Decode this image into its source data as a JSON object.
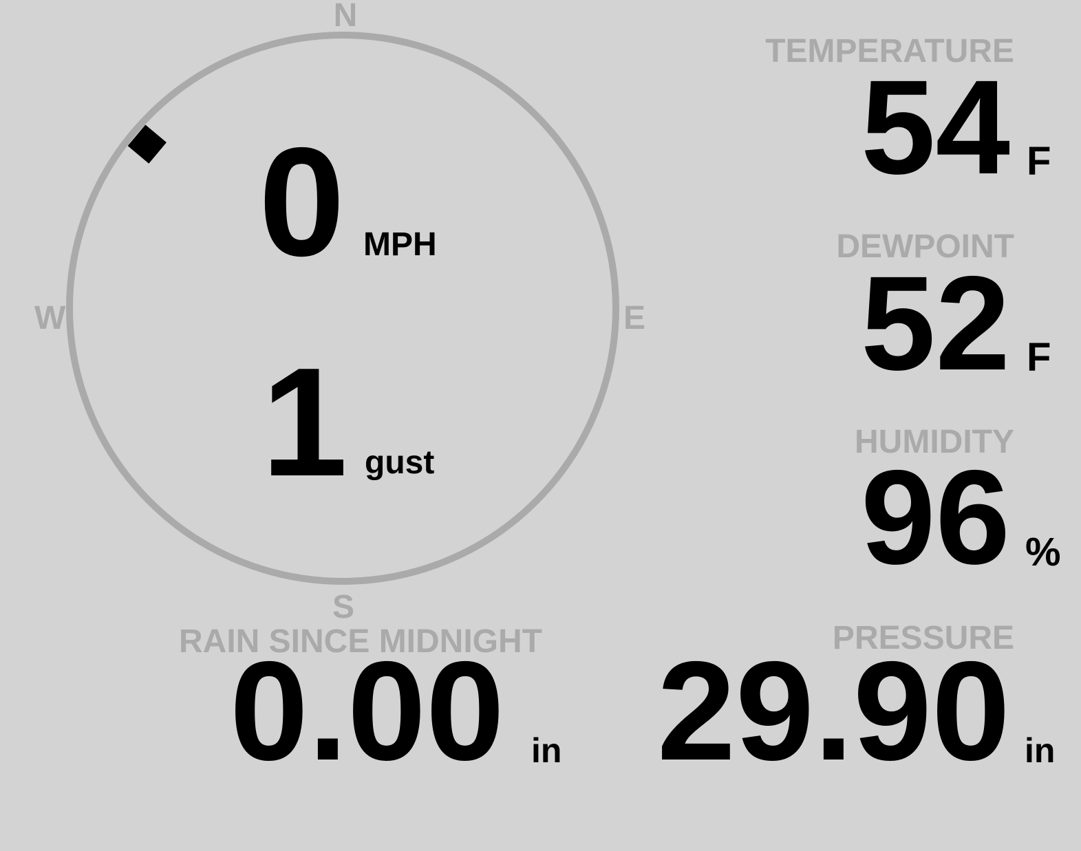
{
  "compass": {
    "north": "N",
    "east": "E",
    "south": "S",
    "west": "W",
    "wind_direction_deg": 310,
    "ring_color": "#aaaaaa",
    "marker_color": "#000000"
  },
  "wind": {
    "speed": "0",
    "speed_unit": "MPH",
    "gust": "1",
    "gust_unit": "gust"
  },
  "temperature": {
    "label": "TEMPERATURE",
    "value": "54",
    "unit": "F"
  },
  "dewpoint": {
    "label": "DEWPOINT",
    "value": "52",
    "unit": "F"
  },
  "humidity": {
    "label": "HUMIDITY",
    "value": "96",
    "unit": "%"
  },
  "pressure": {
    "label": "PRESSURE",
    "value": "29.90",
    "unit": "in"
  },
  "rain": {
    "label": "RAIN SINCE MIDNIGHT",
    "value": "0.00",
    "unit": "in"
  },
  "colors": {
    "background": "#d3d3d3",
    "label": "#aaaaaa",
    "value": "#000000"
  }
}
